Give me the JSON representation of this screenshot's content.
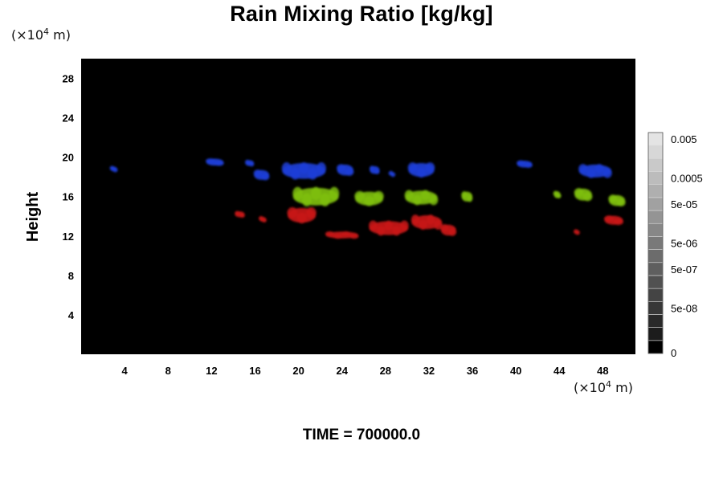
{
  "chart_data": {
    "type": "heatmap",
    "title": "Rain Mixing Ratio [kg/kg]",
    "ylabel": "Height",
    "xlabel": "",
    "x_unit_base": "(×10",
    "x_unit_exp": "4",
    "x_unit_suffix": " m)",
    "y_unit_base": "(×10",
    "y_unit_exp": "4",
    "y_unit_suffix": " m)",
    "xlim": [
      0,
      51
    ],
    "ylim": [
      0,
      30
    ],
    "x_ticks": [
      4,
      8,
      12,
      16,
      20,
      24,
      28,
      32,
      36,
      40,
      44,
      48
    ],
    "y_ticks": [
      4,
      8,
      12,
      16,
      20,
      24,
      28
    ],
    "background_color": "#000000",
    "colorbar": {
      "labels": [
        "0",
        "5e-08",
        "5e-07",
        "5e-06",
        "5e-05",
        "0.0005",
        "0.005"
      ],
      "levels": 17
    },
    "layers": [
      {
        "color": "#1e3fd8",
        "y_range": [
          17.5,
          20.0
        ],
        "blobs": [
          {
            "x": 3.0,
            "y": 18.8,
            "w": 0.6,
            "h": 0.5
          },
          {
            "x": 12.3,
            "y": 19.5,
            "w": 1.6,
            "h": 0.7
          },
          {
            "x": 15.5,
            "y": 19.4,
            "w": 0.8,
            "h": 0.6
          },
          {
            "x": 16.6,
            "y": 18.2,
            "w": 1.4,
            "h": 1.0
          },
          {
            "x": 20.5,
            "y": 18.6,
            "w": 4.0,
            "h": 1.6
          },
          {
            "x": 24.3,
            "y": 18.7,
            "w": 1.5,
            "h": 1.1
          },
          {
            "x": 27.0,
            "y": 18.7,
            "w": 0.9,
            "h": 0.8
          },
          {
            "x": 28.6,
            "y": 18.3,
            "w": 0.4,
            "h": 0.4
          },
          {
            "x": 31.3,
            "y": 18.7,
            "w": 2.4,
            "h": 1.4
          },
          {
            "x": 40.8,
            "y": 19.3,
            "w": 1.4,
            "h": 0.7
          },
          {
            "x": 47.3,
            "y": 18.6,
            "w": 3.0,
            "h": 1.3
          }
        ]
      },
      {
        "color": "#7fbf12",
        "y_range": [
          14.5,
          17.5
        ],
        "blobs": [
          {
            "x": 21.6,
            "y": 16.0,
            "w": 4.2,
            "h": 1.8
          },
          {
            "x": 26.5,
            "y": 15.8,
            "w": 2.6,
            "h": 1.4
          },
          {
            "x": 31.3,
            "y": 15.9,
            "w": 3.0,
            "h": 1.4
          },
          {
            "x": 35.5,
            "y": 16.0,
            "w": 1.0,
            "h": 1.0
          },
          {
            "x": 43.8,
            "y": 16.2,
            "w": 0.6,
            "h": 0.7
          },
          {
            "x": 46.2,
            "y": 16.2,
            "w": 1.6,
            "h": 1.2
          },
          {
            "x": 49.3,
            "y": 15.6,
            "w": 1.5,
            "h": 1.1
          }
        ]
      },
      {
        "color": "#c81818",
        "y_range": [
          11.5,
          15.0
        ],
        "blobs": [
          {
            "x": 14.6,
            "y": 14.2,
            "w": 0.9,
            "h": 0.6
          },
          {
            "x": 16.7,
            "y": 13.7,
            "w": 0.6,
            "h": 0.5
          },
          {
            "x": 20.3,
            "y": 14.1,
            "w": 2.6,
            "h": 1.5
          },
          {
            "x": 24.0,
            "y": 12.1,
            "w": 3.0,
            "h": 0.7
          },
          {
            "x": 28.3,
            "y": 12.8,
            "w": 3.6,
            "h": 1.4
          },
          {
            "x": 31.8,
            "y": 13.4,
            "w": 2.8,
            "h": 1.4
          },
          {
            "x": 33.8,
            "y": 12.6,
            "w": 1.4,
            "h": 1.1
          },
          {
            "x": 45.6,
            "y": 12.4,
            "w": 0.3,
            "h": 0.3
          },
          {
            "x": 49.0,
            "y": 13.6,
            "w": 1.7,
            "h": 0.9
          }
        ]
      }
    ]
  },
  "footer": {
    "time_label": "TIME = 700000.0"
  }
}
